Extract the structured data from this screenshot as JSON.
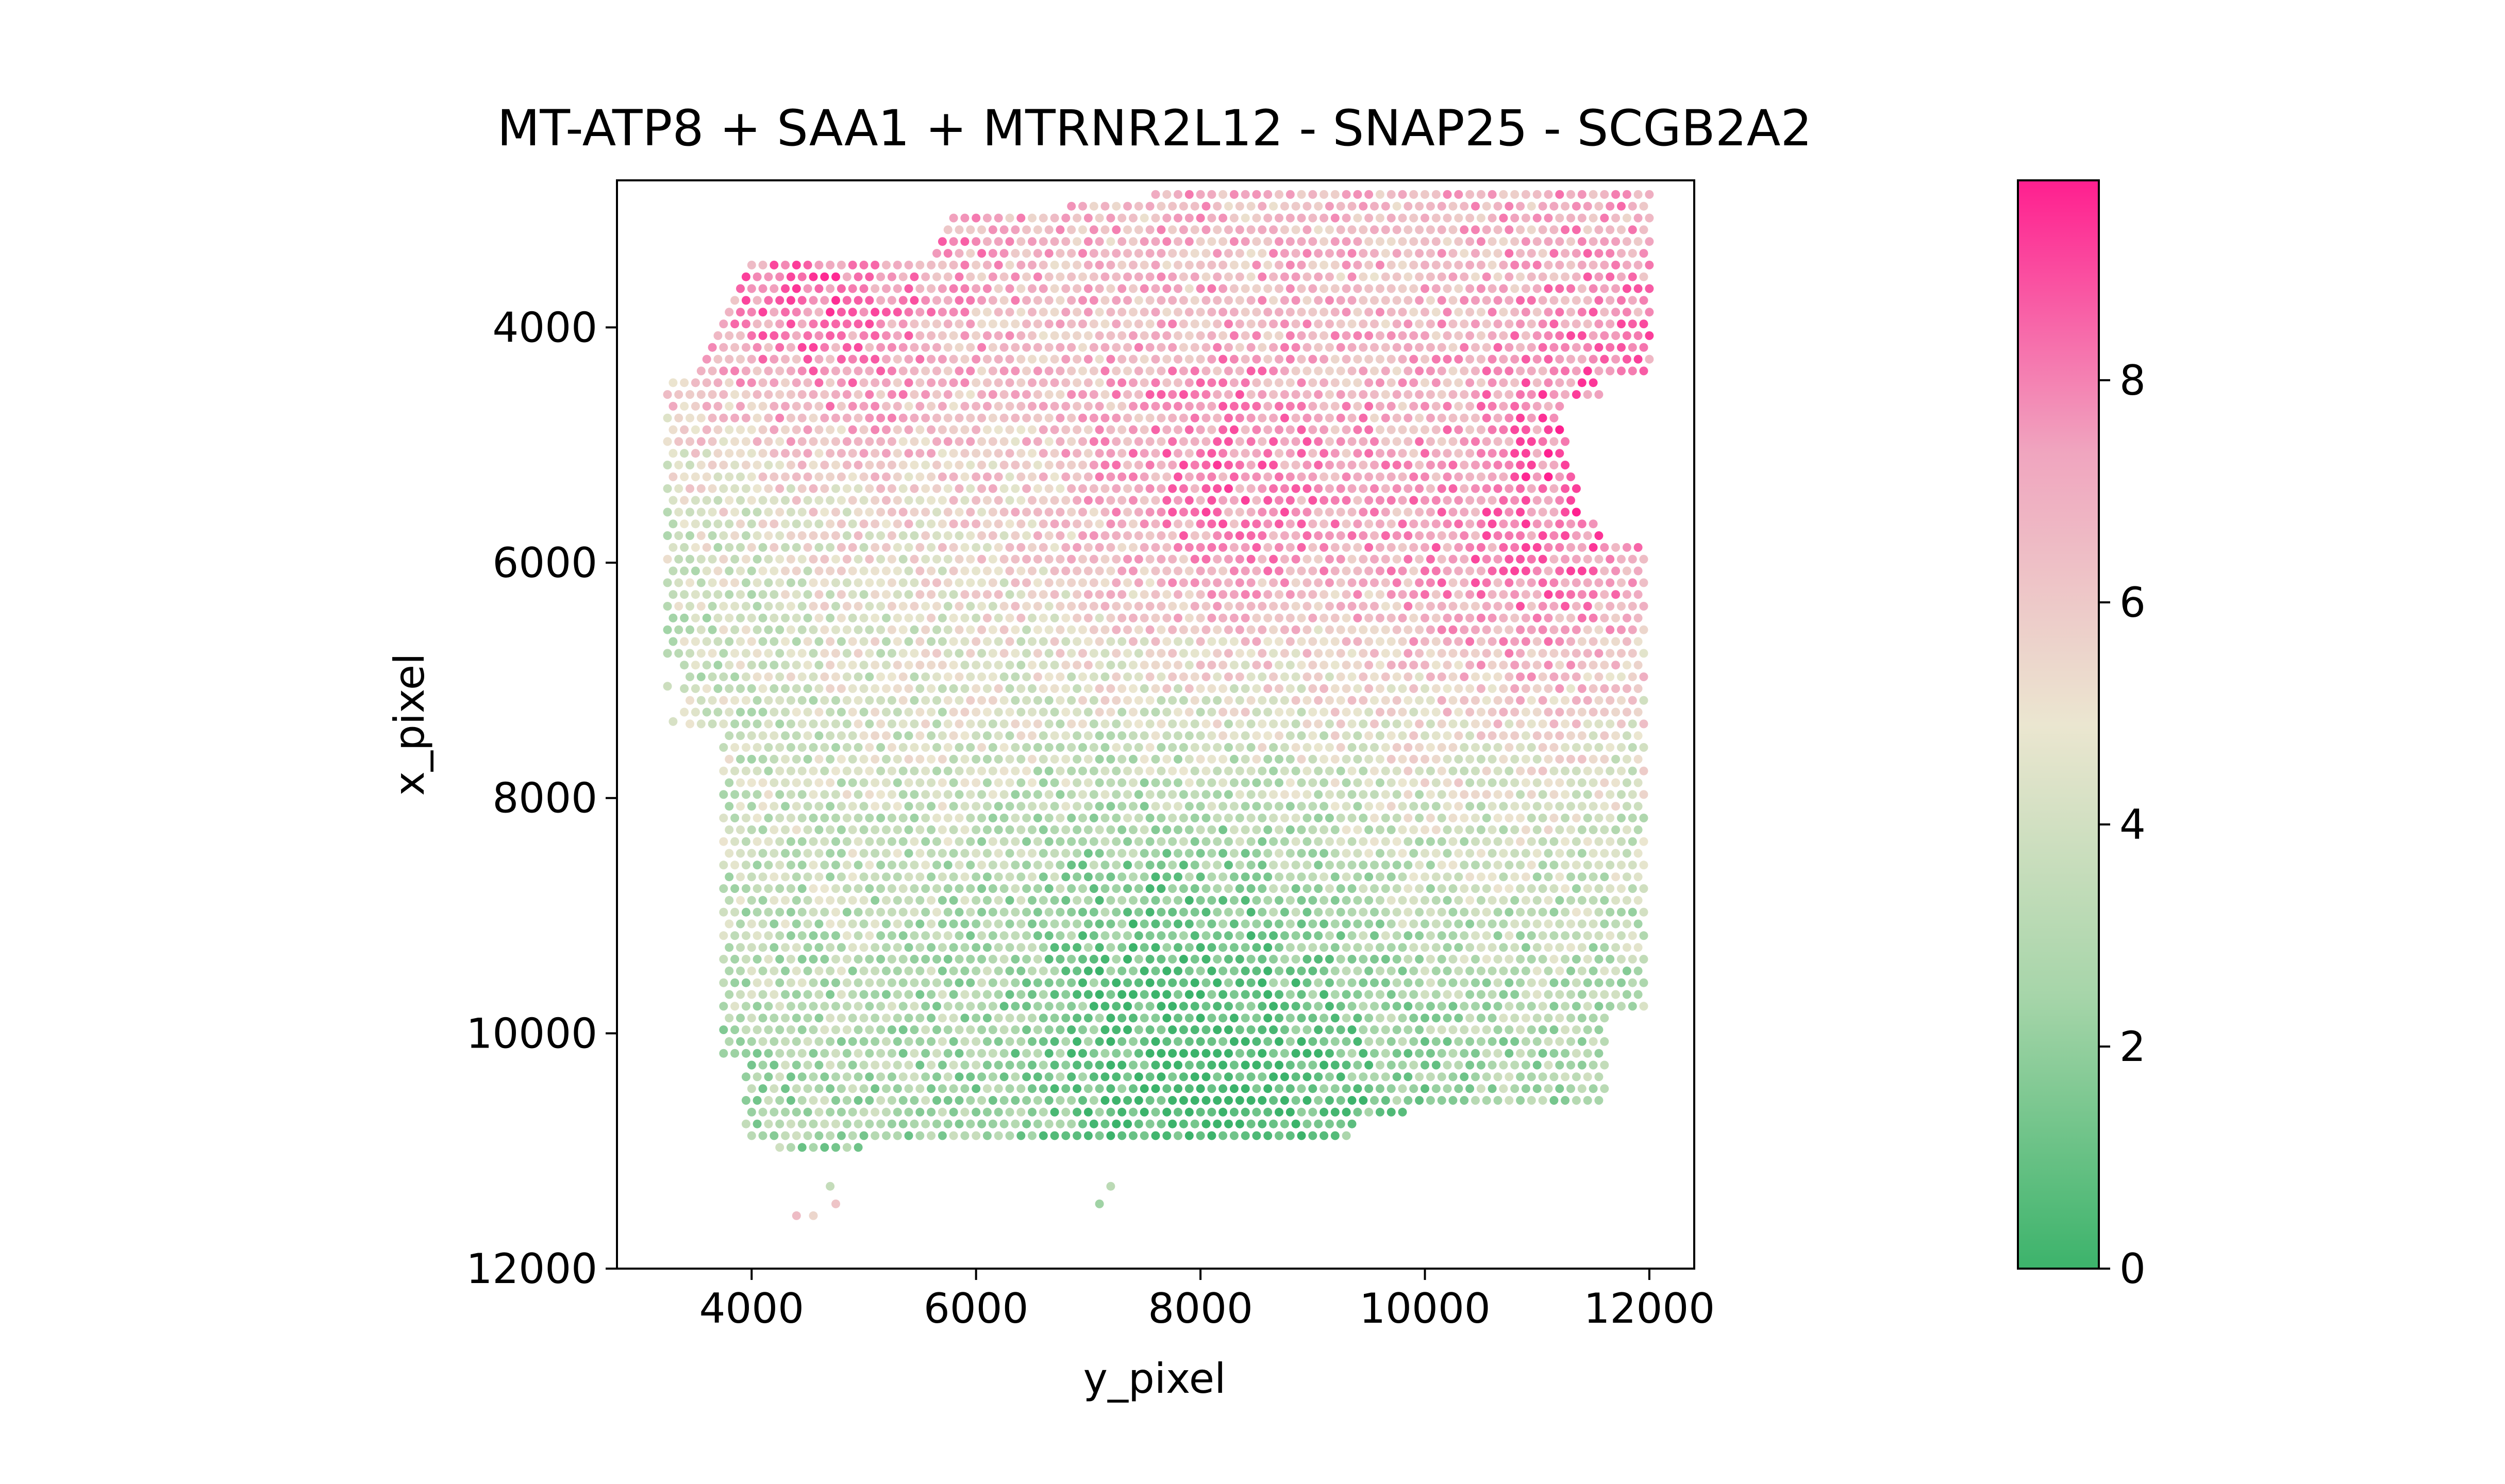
{
  "chart_data": {
    "type": "scatter",
    "title": "MT-ATP8 + SAA1 + MTRNR2L12 - SNAP25 - SCGB2A2",
    "xlabel": "y_pixel",
    "ylabel": "x_pixel",
    "xlim": [
      2800,
      12400
    ],
    "ylim": [
      12000,
      2750
    ],
    "y_inverted": true,
    "grid": false,
    "x_ticks": [
      4000,
      6000,
      8000,
      10000,
      12000
    ],
    "y_ticks": [
      4000,
      6000,
      8000,
      10000,
      12000
    ],
    "x_tick_labels": [
      "4000",
      "6000",
      "8000",
      "10000",
      "12000"
    ],
    "y_tick_labels": [
      "4000",
      "6000",
      "8000",
      "10000",
      "12000"
    ],
    "colorbar": {
      "vmin": 0,
      "vmax": 9.8,
      "ticks": [
        0,
        2,
        4,
        6,
        8
      ],
      "tick_labels": [
        "0",
        "2",
        "4",
        "6",
        "8"
      ],
      "colors": [
        "#3cb36b",
        "#a6d5a9",
        "#ebe6d0",
        "#f0a5bf",
        "#ff1f8f"
      ]
    },
    "spot_grid": {
      "row_start_x": 2870,
      "row_step_x": 100,
      "row_count": 82,
      "col_step_y": 100,
      "col_offset_y_odd_rows": 50
    },
    "tissue_boundary": {
      "left_edge_y": 3200,
      "right_edge_y": 12000,
      "top_x": 2780,
      "bottom_x": 11250
    },
    "expression_peaks": [
      {
        "y": 8200,
        "x": 5400,
        "value": 9.5
      },
      {
        "y": 10800,
        "x": 6300,
        "value": 9.0
      },
      {
        "y": 11800,
        "x": 4800,
        "value": 9.2
      },
      {
        "y": 4600,
        "x": 3800,
        "value": 8.6
      },
      {
        "y": 8300,
        "x": 10600,
        "value": 1.0
      },
      {
        "y": 7600,
        "x": 9100,
        "value": 1.8
      },
      {
        "y": 3300,
        "x": 6100,
        "value": 2.8
      }
    ]
  }
}
